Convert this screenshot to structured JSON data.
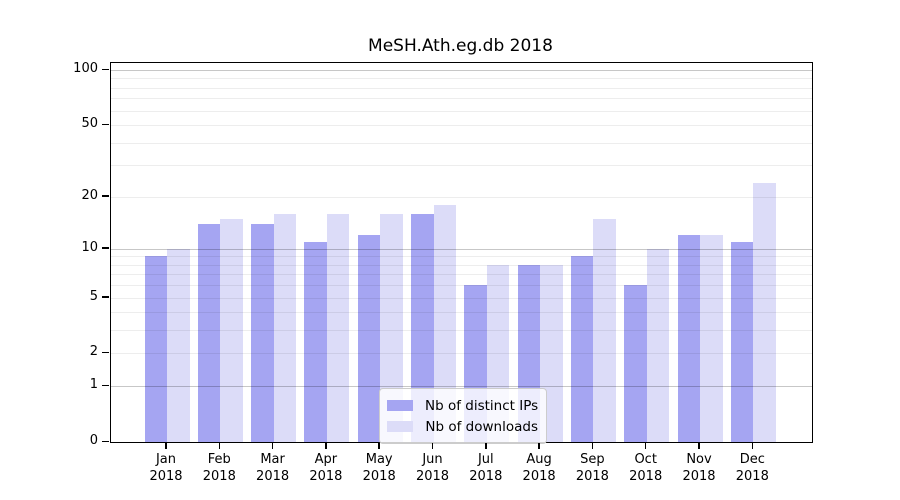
{
  "figure": {
    "background": "#ffffff"
  },
  "chart_data": {
    "type": "bar",
    "title": "MeSH.Ath.eg.db 2018",
    "categories": [
      "Jan",
      "Feb",
      "Mar",
      "Apr",
      "May",
      "Jun",
      "Jul",
      "Aug",
      "Sep",
      "Oct",
      "Nov",
      "Dec"
    ],
    "x_tick_year": "2018",
    "series": [
      {
        "name": "Nb of distinct IPs",
        "color": "#a5a5f2",
        "values": [
          9,
          14,
          14,
          11,
          12,
          16,
          6,
          8,
          9,
          6,
          12,
          11
        ]
      },
      {
        "name": "Nb of downloads",
        "color": "#dcdcf8",
        "values": [
          10,
          15,
          16,
          16,
          16,
          18,
          8,
          8,
          15,
          10,
          12,
          24
        ]
      }
    ],
    "yscale": "log1p",
    "ylim": [
      0,
      110
    ],
    "y_ticks": [
      0,
      1,
      2,
      5,
      10,
      20,
      50,
      100
    ],
    "y_major_gridlines": [
      1,
      10,
      100
    ],
    "y_minor_gridlines": [
      2,
      3,
      4,
      5,
      6,
      7,
      8,
      9,
      20,
      30,
      40,
      50,
      60,
      70,
      80,
      90
    ],
    "grid": true,
    "legend": {
      "position": "lower-center",
      "entries": [
        "Nb of distinct IPs",
        "Nb of downloads"
      ]
    },
    "colors": {
      "axis": "#000000",
      "major_grid": "rgba(0,0,0,0.22)",
      "minor_grid": "rgba(0,0,0,0.07)"
    }
  }
}
